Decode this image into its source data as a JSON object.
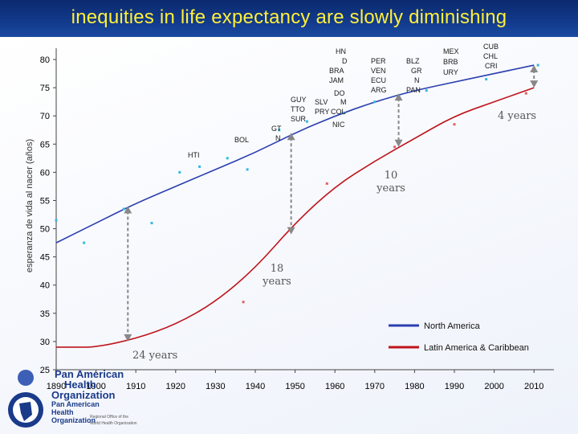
{
  "title": "inequities in life expectancy  are slowly diminishing",
  "colors": {
    "north_america": "#2b3fb0",
    "latin_america": "#c0141c",
    "banner": "#123a8c",
    "title": "#ffef3a"
  },
  "chart_data": {
    "type": "line",
    "ylabel": "esperanza de vida al nacer (años)",
    "xlabel": "",
    "xlim": [
      1890,
      2015
    ],
    "ylim": [
      25,
      82
    ],
    "x_ticks": [
      1890,
      1900,
      1910,
      1920,
      1930,
      1940,
      1950,
      1960,
      1970,
      1980,
      1990,
      2000,
      2010
    ],
    "y_ticks": [
      25,
      30,
      35,
      40,
      45,
      50,
      55,
      60,
      65,
      70,
      75,
      80
    ],
    "series": [
      {
        "name": "North America",
        "color": "#2b3fb0",
        "x": [
          1890,
          1900,
          1910,
          1920,
          1930,
          1940,
          1950,
          1960,
          1970,
          1980,
          1990,
          2000,
          2010
        ],
        "values": [
          47.5,
          51,
          54.5,
          57.5,
          60.5,
          63.5,
          67,
          70,
          72.5,
          74.5,
          76,
          77.5,
          79
        ]
      },
      {
        "name": "Latin America & Caribbean",
        "color": "#c0141c",
        "x": [
          1890,
          1895,
          1900,
          1910,
          1920,
          1930,
          1940,
          1950,
          1960,
          1970,
          1980,
          1990,
          2000,
          2010
        ],
        "values": [
          29,
          29,
          29,
          30.5,
          33,
          37,
          43,
          51,
          57.5,
          62,
          66,
          70,
          72.5,
          75
        ]
      }
    ],
    "scatter_points": {
      "north_america": [
        [
          1890,
          51.5
        ],
        [
          1897,
          47.5
        ],
        [
          1907,
          53.5
        ],
        [
          1914,
          51
        ],
        [
          1921,
          60
        ],
        [
          1926,
          61
        ],
        [
          1933,
          62.5
        ],
        [
          1938,
          60.5
        ],
        [
          1946,
          67.5
        ],
        [
          1953,
          69
        ],
        [
          1962,
          70.5
        ],
        [
          1970,
          72.5
        ],
        [
          1983,
          74.5
        ],
        [
          1998,
          76.5
        ],
        [
          2011,
          79
        ]
      ],
      "latin_america": [
        [
          1937,
          37
        ],
        [
          1958,
          58
        ],
        [
          1975,
          64.5
        ],
        [
          1990,
          68.5
        ],
        [
          2008,
          74
        ]
      ]
    },
    "gap_annotations": [
      {
        "label": "24 years",
        "year": 1908,
        "from": 54,
        "to": 30
      },
      {
        "label": "18 years",
        "year": 1949,
        "from": 67,
        "to": 49
      },
      {
        "label": "10 years",
        "year": 1976,
        "from": 74,
        "to": 64.5
      },
      {
        "label": "4 years",
        "year": 2010,
        "from": 79,
        "to": 75
      }
    ],
    "country_labels": {
      "BOL": "BOL",
      "HTI": "HTI",
      "GT": "GT",
      "N": "N",
      "GUY": "GUY",
      "TTO": "TTO",
      "SUR": "SUR",
      "HN": "HN",
      "D": "D",
      "BRA": "BRA",
      "JAM": "JAM",
      "DO": "DO",
      "M": "M",
      "SLV": "SLV",
      "PRY": "PRY",
      "COL": "COL",
      "NIC": "NIC",
      "PER": "PER",
      "VEN": "VEN",
      "ECU": "ECU",
      "ARG": "ARG",
      "BLZ": "BLZ",
      "GR": "GR",
      "N2": "N",
      "PAN": "PAN",
      "MEX": "MEX",
      "BRB": "BRB",
      "URY": "URY",
      "CUB": "CUB",
      "CHL": "CHL",
      "CRI": "CRI"
    },
    "legend": [
      {
        "label": "North America",
        "color": "#2b3fb0"
      },
      {
        "label": "Latin America & Caribbean",
        "color": "#c0141c"
      }
    ]
  },
  "logo": {
    "line1": "Pan American",
    "line2": "Health",
    "line3": "Organization",
    "small1": "Pan American",
    "small2": "Health",
    "small3": "Organization",
    "tag1": "Regional Office of the",
    "tag2": "World Health Organization"
  }
}
